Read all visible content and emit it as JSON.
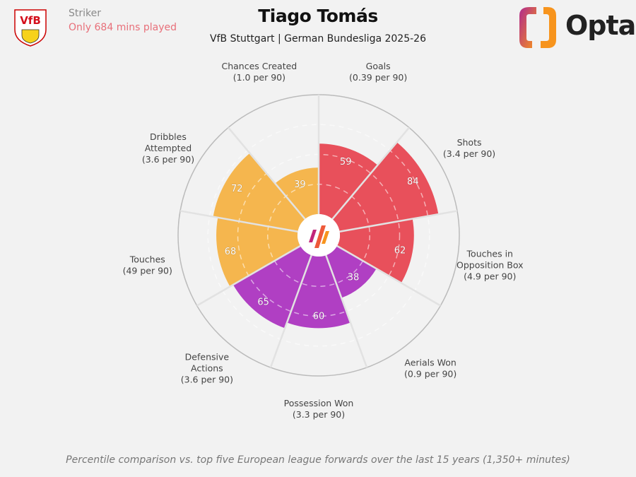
{
  "header": {
    "role": "Striker",
    "minutes_note": "Only 684 mins played",
    "title": "Tiago Tomás",
    "subtitle": "VfB Stuttgart | German Bundesliga 2025-26",
    "brand": "Opta",
    "club_logo": "VfB"
  },
  "footer": "Percentile comparison vs. top five European league forwards over the last 15 years (1,350+ minutes)",
  "colors": {
    "attacking": "#e8505b",
    "possession": "#f5b64e",
    "defending": "#b03fc3",
    "background": "#f2f2f2"
  },
  "chart_data": {
    "type": "polar-bar",
    "range": [
      0,
      100
    ],
    "categories": [
      {
        "label": [
          "Goals",
          "(0.39 per 90)"
        ],
        "value": 59,
        "group": "attacking"
      },
      {
        "label": [
          "Shots",
          "(3.4 per 90)"
        ],
        "value": 84,
        "group": "attacking"
      },
      {
        "label": [
          "Touches in",
          "Opposition Box",
          "(4.9 per 90)"
        ],
        "value": 62,
        "group": "attacking"
      },
      {
        "label": [
          "Aerials Won",
          "(0.9 per 90)"
        ],
        "value": 38,
        "group": "defending"
      },
      {
        "label": [
          "Possession Won",
          "(3.3 per 90)"
        ],
        "value": 60,
        "group": "defending"
      },
      {
        "label": [
          "Defensive",
          "Actions",
          "(3.6 per 90)"
        ],
        "value": 65,
        "group": "defending"
      },
      {
        "label": [
          "Touches",
          "(49 per 90)"
        ],
        "value": 68,
        "group": "possession"
      },
      {
        "label": [
          "Dribbles",
          "Attempted",
          "(3.6 per 90)"
        ],
        "value": 72,
        "group": "possession"
      },
      {
        "label": [
          "Chances Created",
          "(1.0 per 90)"
        ],
        "value": 39,
        "group": "possession"
      }
    ]
  }
}
